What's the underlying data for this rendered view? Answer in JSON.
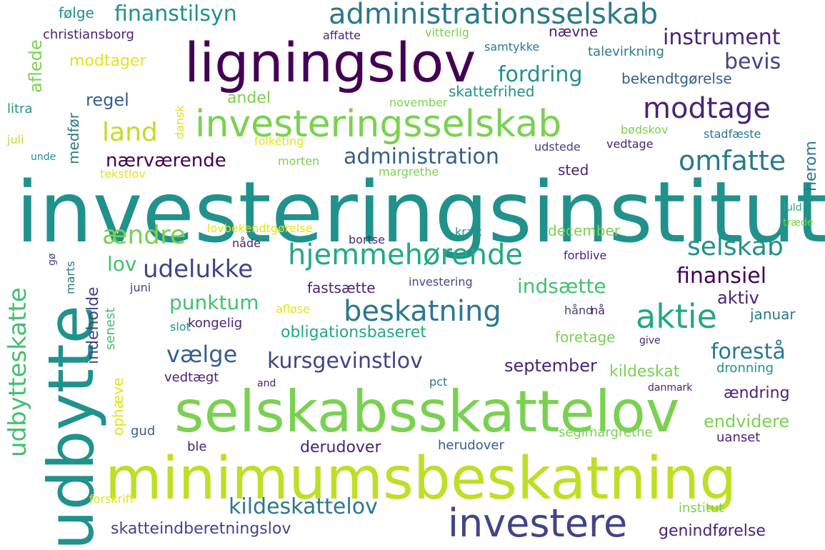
{
  "palette": {
    "dpurple": "#440154",
    "purple": "#482475",
    "indigo": "#414487",
    "blue": "#355f8d",
    "steel": "#2a788e",
    "teal": "#21918c",
    "tgreen": "#22a884",
    "green": "#44bf70",
    "lgreen": "#7ad151",
    "lime": "#bddf26",
    "yellow": "#e2e418"
  },
  "words": [
    {
      "text": "investeringsinstitut",
      "color": "teal",
      "rotate": 0
    },
    {
      "text": "selskabsskattelov",
      "color": "lgreen",
      "rotate": 0
    },
    {
      "text": "minimumsbeskatning",
      "color": "lime",
      "rotate": 0
    },
    {
      "text": "udbytte",
      "color": "teal",
      "rotate": -90
    },
    {
      "text": "ligningslov",
      "color": "dpurple",
      "rotate": 0
    },
    {
      "text": "investeringsselskab",
      "color": "lgreen",
      "rotate": 0
    },
    {
      "text": "administrationsselskab",
      "color": "steel",
      "rotate": 0
    },
    {
      "text": "investere",
      "color": "indigo",
      "rotate": 0
    },
    {
      "text": "hjemmehørende",
      "color": "tgreen",
      "rotate": 0
    },
    {
      "text": "beskatning",
      "color": "steel",
      "rotate": 0
    },
    {
      "text": "aktie",
      "color": "tgreen",
      "rotate": 0
    },
    {
      "text": "udbytteskatte",
      "color": "green",
      "rotate": -90
    },
    {
      "text": "modtage",
      "color": "purple",
      "rotate": 0
    },
    {
      "text": "omfatte",
      "color": "steel",
      "rotate": 0
    },
    {
      "text": "ændre",
      "color": "lgreen",
      "rotate": 0
    },
    {
      "text": "land",
      "color": "lime",
      "rotate": 0
    },
    {
      "text": "selskab",
      "color": "teal",
      "rotate": 0
    },
    {
      "text": "udelukke",
      "color": "indigo",
      "rotate": 0
    },
    {
      "text": "kildeskattelov",
      "color": "steel",
      "rotate": 0
    },
    {
      "text": "vælge",
      "color": "blue",
      "rotate": 0
    },
    {
      "text": "kursgevinstlov",
      "color": "indigo",
      "rotate": 0
    },
    {
      "text": "finanstilsyn",
      "color": "teal",
      "rotate": 0
    },
    {
      "text": "instrument",
      "color": "purple",
      "rotate": 0
    },
    {
      "text": "administration",
      "color": "blue",
      "rotate": 0
    },
    {
      "text": "fordring",
      "color": "teal",
      "rotate": 0
    },
    {
      "text": "bevis",
      "color": "indigo",
      "rotate": 0
    },
    {
      "text": "finansiel",
      "color": "dpurple",
      "rotate": 0
    },
    {
      "text": "forestå",
      "color": "steel",
      "rotate": 0
    },
    {
      "text": "nærværende",
      "color": "dpurple",
      "rotate": 0
    },
    {
      "text": "punktum",
      "color": "green",
      "rotate": 0
    },
    {
      "text": "indsætte",
      "color": "green",
      "rotate": 0
    },
    {
      "text": "skatteindberetningslov",
      "color": "indigo",
      "rotate": 0
    },
    {
      "text": "genindførelse",
      "color": "purple",
      "rotate": 0
    },
    {
      "text": "lov",
      "color": "green",
      "rotate": 0
    },
    {
      "text": "aktiv",
      "color": "purple",
      "rotate": 0
    },
    {
      "text": "modtager",
      "color": "yellow",
      "rotate": 0
    },
    {
      "text": "aflede",
      "color": "lgreen",
      "rotate": -90
    },
    {
      "text": "regel",
      "color": "blue",
      "rotate": 0
    },
    {
      "text": "andel",
      "color": "lgreen",
      "rotate": 0
    },
    {
      "text": "endvidere",
      "color": "lgreen",
      "rotate": 0
    },
    {
      "text": "ændring",
      "color": "purple",
      "rotate": 0
    },
    {
      "text": "derudover",
      "color": "purple",
      "rotate": 0
    },
    {
      "text": "september",
      "color": "purple",
      "rotate": 0
    },
    {
      "text": "kildeskat",
      "color": "lgreen",
      "rotate": 0
    },
    {
      "text": "obligationsbaseret",
      "color": "tgreen",
      "rotate": 0
    },
    {
      "text": "fastsætte",
      "color": "purple",
      "rotate": 0
    },
    {
      "text": "indeholde",
      "color": "indigo",
      "rotate": -90
    },
    {
      "text": "medfør",
      "color": "steel",
      "rotate": -90
    },
    {
      "text": "herom",
      "color": "steel",
      "rotate": -90
    },
    {
      "text": "skattefrihed",
      "color": "teal",
      "rotate": 0
    },
    {
      "text": "bekendtgørelse",
      "color": "blue",
      "rotate": 0
    },
    {
      "text": "christiansborg",
      "color": "purple",
      "rotate": 0
    },
    {
      "text": "følge",
      "color": "teal",
      "rotate": 0
    },
    {
      "text": "nævne",
      "color": "purple",
      "rotate": 0
    },
    {
      "text": "talevirkning",
      "color": "steel",
      "rotate": 0
    },
    {
      "text": "sted",
      "color": "purple",
      "rotate": 0
    },
    {
      "text": "december",
      "color": "lgreen",
      "rotate": 0
    },
    {
      "text": "januar",
      "color": "steel",
      "rotate": 0
    },
    {
      "text": "foretage",
      "color": "lgreen",
      "rotate": 0
    },
    {
      "text": "dronning",
      "color": "teal",
      "rotate": 0
    },
    {
      "text": "uanset",
      "color": "purple",
      "rotate": 0
    },
    {
      "text": "institut",
      "color": "lgreen",
      "rotate": 0
    },
    {
      "text": "herudover",
      "color": "blue",
      "rotate": 0
    },
    {
      "text": "seglmargrethe",
      "color": "lgreen",
      "rotate": 0
    },
    {
      "text": "ophæve",
      "color": "yellow",
      "rotate": -90
    },
    {
      "text": "senest",
      "color": "green",
      "rotate": -90
    },
    {
      "text": "kongelig",
      "color": "purple",
      "rotate": 0
    },
    {
      "text": "vedtægt",
      "color": "purple",
      "rotate": 0
    },
    {
      "text": "ble",
      "color": "purple",
      "rotate": 0
    },
    {
      "text": "gud",
      "color": "blue",
      "rotate": 0
    },
    {
      "text": "litra",
      "color": "teal",
      "rotate": 0
    },
    {
      "text": "juli",
      "color": "lime",
      "rotate": 0
    },
    {
      "text": "unde",
      "color": "teal",
      "rotate": 0
    },
    {
      "text": "dansk",
      "color": "yellow",
      "rotate": -90
    },
    {
      "text": "tekstlov",
      "color": "yellow",
      "rotate": 0
    },
    {
      "text": "folketing",
      "color": "yellow",
      "rotate": 0
    },
    {
      "text": "morten",
      "color": "lgreen",
      "rotate": 0
    },
    {
      "text": "margrethe",
      "color": "lgreen",
      "rotate": 0
    },
    {
      "text": "november",
      "color": "lgreen",
      "rotate": 0
    },
    {
      "text": "bødskov",
      "color": "lgreen",
      "rotate": 0
    },
    {
      "text": "vedtage",
      "color": "purple",
      "rotate": 0
    },
    {
      "text": "stadfæste",
      "color": "steel",
      "rotate": 0
    },
    {
      "text": "udstede",
      "color": "indigo",
      "rotate": 0
    },
    {
      "text": "affatte",
      "color": "purple",
      "rotate": 0
    },
    {
      "text": "vitterlig",
      "color": "lgreen",
      "rotate": 0
    },
    {
      "text": "samtykke",
      "color": "steel",
      "rotate": 0
    },
    {
      "text": "lovbekendtgørelse",
      "color": "yellow",
      "rotate": 0
    },
    {
      "text": "bortse",
      "color": "purple",
      "rotate": 0
    },
    {
      "text": "nåde",
      "color": "purple",
      "rotate": 0
    },
    {
      "text": "kraft",
      "color": "teal",
      "rotate": 0
    },
    {
      "text": "forblive",
      "color": "purple",
      "rotate": 0
    },
    {
      "text": "investering",
      "color": "indigo",
      "rotate": 0
    },
    {
      "text": "juni",
      "color": "indigo",
      "rotate": 0
    },
    {
      "text": "afløse",
      "color": "yellow",
      "rotate": 0
    },
    {
      "text": "slot",
      "color": "teal",
      "rotate": 0
    },
    {
      "text": "hånd",
      "color": "indigo",
      "rotate": 0
    },
    {
      "text": "nå",
      "color": "purple",
      "rotate": 0
    },
    {
      "text": "give",
      "color": "purple",
      "rotate": 0
    },
    {
      "text": "danmark",
      "color": "purple",
      "rotate": 0
    },
    {
      "text": "and",
      "color": "purple",
      "rotate": 0
    },
    {
      "text": "pct",
      "color": "steel",
      "rotate": 0
    },
    {
      "text": "forskrift",
      "color": "yellow",
      "rotate": 0
    },
    {
      "text": "marts",
      "color": "steel",
      "rotate": -90
    },
    {
      "text": "gø",
      "color": "indigo",
      "rotate": -90
    },
    {
      "text": "fuld",
      "color": "tgreen",
      "rotate": 0
    },
    {
      "text": "træde",
      "color": "lgreen",
      "rotate": 0
    }
  ]
}
